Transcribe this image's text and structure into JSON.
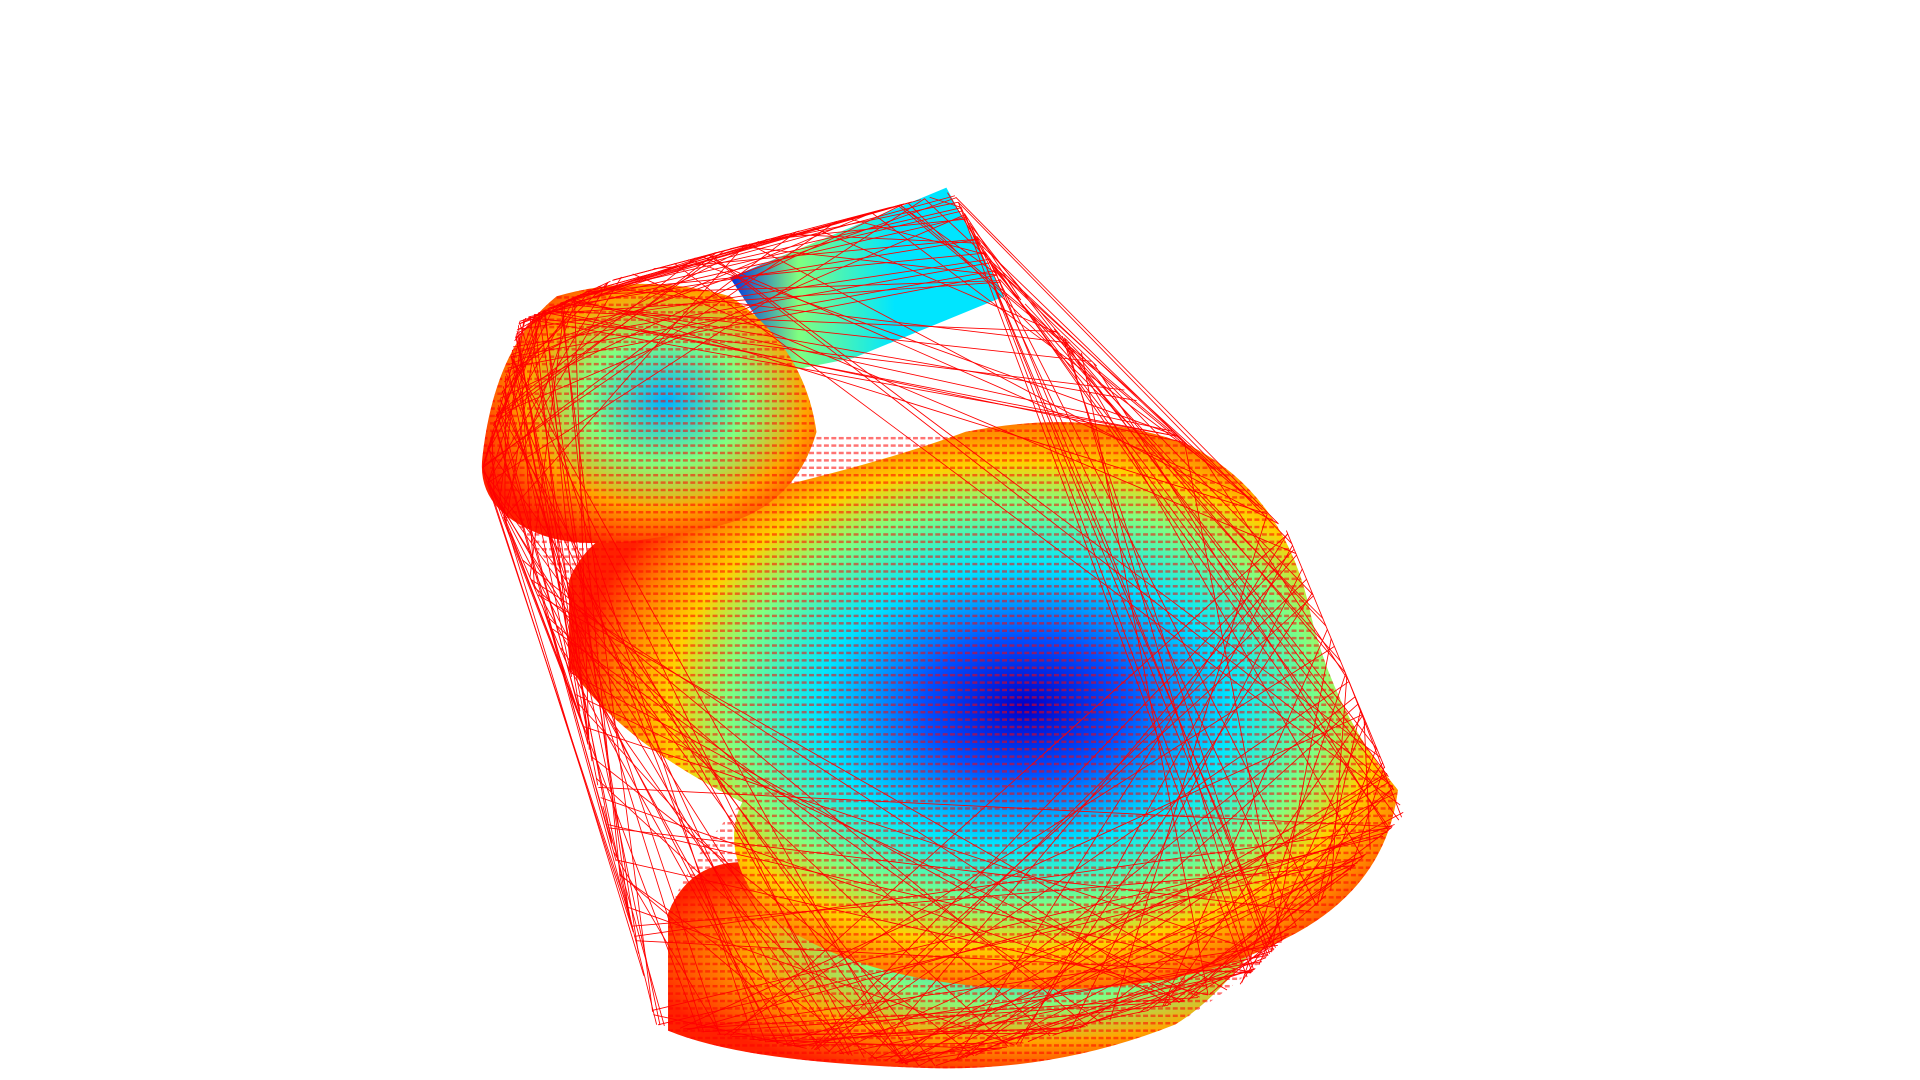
{
  "scene": {
    "subject": "bunny-point-cloud",
    "background_color": "#ffffff",
    "hull_line_color": "#ff0000",
    "colormap": [
      "#0000c8",
      "#0050ff",
      "#00e5ff",
      "#80ff80",
      "#ffff00",
      "#ffa500",
      "#ff2000",
      "#e00000"
    ]
  }
}
